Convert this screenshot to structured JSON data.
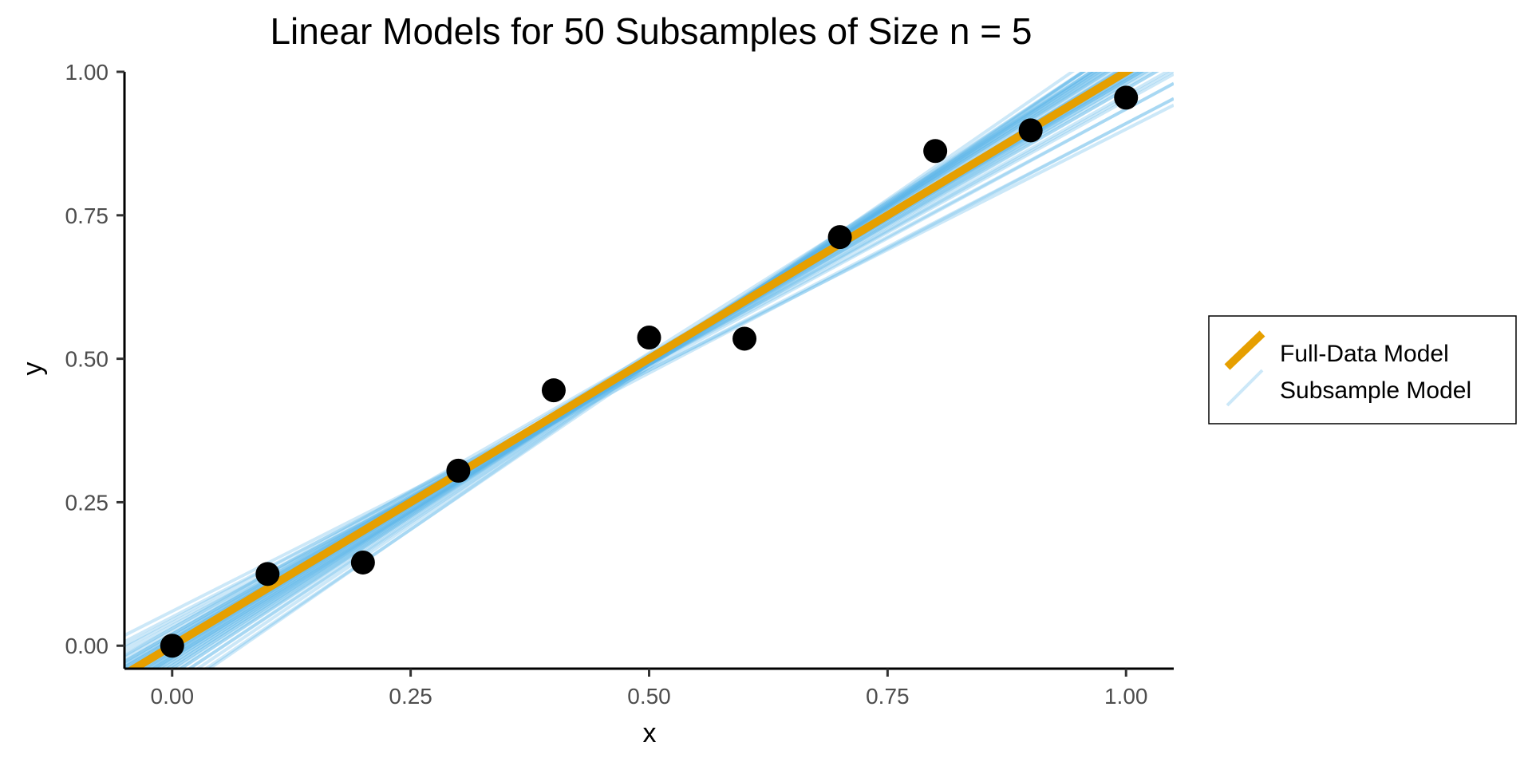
{
  "chart_data": {
    "type": "scatter",
    "title": "Linear Models for 50 Subsamples of Size n = 5",
    "xlabel": "x",
    "ylabel": "y",
    "xlim": [
      -0.05,
      1.05
    ],
    "ylim": [
      -0.04,
      1.0
    ],
    "x_ticks": [
      {
        "value": 0.0,
        "label": "0.00"
      },
      {
        "value": 0.25,
        "label": "0.25"
      },
      {
        "value": 0.5,
        "label": "0.50"
      },
      {
        "value": 0.75,
        "label": "0.75"
      },
      {
        "value": 1.0,
        "label": "1.00"
      }
    ],
    "y_ticks": [
      {
        "value": 0.0,
        "label": "0.00"
      },
      {
        "value": 0.25,
        "label": "0.25"
      },
      {
        "value": 0.5,
        "label": "0.50"
      },
      {
        "value": 0.75,
        "label": "0.75"
      },
      {
        "value": 1.0,
        "label": "1.00"
      }
    ],
    "grid": false,
    "legend_position": "right",
    "points": {
      "color": "#000000",
      "x": [
        0.0,
        0.1,
        0.2,
        0.3,
        0.4,
        0.5,
        0.6,
        0.7,
        0.8,
        0.9,
        1.0
      ],
      "y": [
        0.0,
        0.125,
        0.145,
        0.305,
        0.445,
        0.537,
        0.535,
        0.712,
        0.862,
        0.898,
        0.955
      ]
    },
    "full_model": {
      "name": "Full-Data Model",
      "color": "#E69F00",
      "intercept": 0.0,
      "slope": 1.0
    },
    "subsample_models": {
      "name": "Subsample Model",
      "color": "#56B4E9",
      "opacity": 0.3,
      "lines": [
        {
          "intercept": 0.06,
          "slope": 0.84
        },
        {
          "intercept": 0.04,
          "slope": 0.87
        },
        {
          "intercept": 0.035,
          "slope": 0.9
        },
        {
          "intercept": 0.025,
          "slope": 0.93
        },
        {
          "intercept": 0.02,
          "slope": 0.94
        },
        {
          "intercept": 0.015,
          "slope": 0.96
        },
        {
          "intercept": 0.01,
          "slope": 0.97
        },
        {
          "intercept": 0.005,
          "slope": 0.98
        },
        {
          "intercept": 0.0,
          "slope": 0.99
        },
        {
          "intercept": -0.005,
          "slope": 1.0
        },
        {
          "intercept": -0.01,
          "slope": 1.01
        },
        {
          "intercept": -0.015,
          "slope": 1.02
        },
        {
          "intercept": -0.02,
          "slope": 1.03
        },
        {
          "intercept": -0.025,
          "slope": 1.04
        },
        {
          "intercept": -0.03,
          "slope": 1.05
        },
        {
          "intercept": -0.035,
          "slope": 1.06
        },
        {
          "intercept": -0.04,
          "slope": 1.07
        },
        {
          "intercept": -0.045,
          "slope": 1.08
        },
        {
          "intercept": -0.05,
          "slope": 1.09
        },
        {
          "intercept": -0.06,
          "slope": 1.1
        },
        {
          "intercept": -0.07,
          "slope": 1.12
        },
        {
          "intercept": -0.08,
          "slope": 1.13
        },
        {
          "intercept": -0.085,
          "slope": 1.15
        },
        {
          "intercept": 0.01,
          "slope": 0.96
        },
        {
          "intercept": 0.0,
          "slope": 0.98
        },
        {
          "intercept": -0.005,
          "slope": 1.01
        },
        {
          "intercept": -0.012,
          "slope": 1.02
        },
        {
          "intercept": -0.018,
          "slope": 1.04
        },
        {
          "intercept": -0.022,
          "slope": 1.05
        },
        {
          "intercept": -0.03,
          "slope": 1.06
        },
        {
          "intercept": 0.02,
          "slope": 0.95
        },
        {
          "intercept": 0.03,
          "slope": 0.92
        },
        {
          "intercept": -0.04,
          "slope": 1.08
        },
        {
          "intercept": 0.005,
          "slope": 0.99
        },
        {
          "intercept": -0.01,
          "slope": 1.03
        },
        {
          "intercept": -0.02,
          "slope": 1.02
        },
        {
          "intercept": 0.015,
          "slope": 0.97
        },
        {
          "intercept": -0.06,
          "slope": 1.11
        },
        {
          "intercept": 0.045,
          "slope": 0.89
        },
        {
          "intercept": 0.05,
          "slope": 0.86
        },
        {
          "intercept": -0.035,
          "slope": 1.07
        },
        {
          "intercept": 0.0,
          "slope": 1.0
        },
        {
          "intercept": -0.015,
          "slope": 1.05
        },
        {
          "intercept": 0.02,
          "slope": 0.97
        },
        {
          "intercept": -0.05,
          "slope": 1.1
        },
        {
          "intercept": 0.008,
          "slope": 0.985
        },
        {
          "intercept": -0.025,
          "slope": 1.035
        },
        {
          "intercept": 0.03,
          "slope": 0.955
        },
        {
          "intercept": -0.008,
          "slope": 1.015
        },
        {
          "intercept": 0.012,
          "slope": 0.975
        }
      ]
    }
  },
  "legend": {
    "items": [
      {
        "label": "Full-Data Model",
        "color": "#E69F00",
        "key": "full-data-model"
      },
      {
        "label": "Subsample Model",
        "color": "#56B4E9",
        "key": "subsample-model"
      }
    ]
  }
}
